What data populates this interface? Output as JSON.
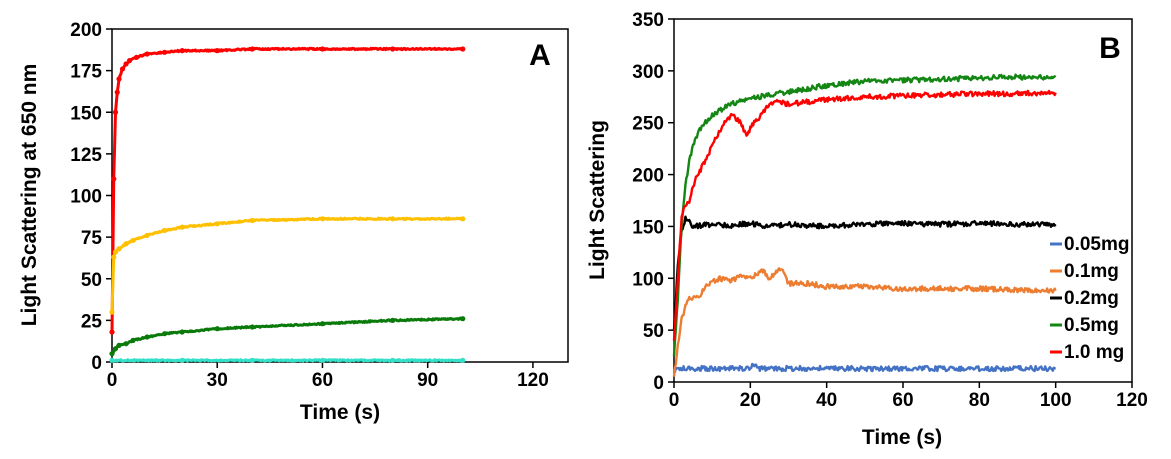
{
  "chart_data": [
    {
      "type": "line",
      "panel_label": "A",
      "title": "",
      "xlabel": "Time (s)",
      "ylabel": "Light Scattering at 650 nm",
      "xlim": [
        0,
        130
      ],
      "ylim": [
        0,
        200
      ],
      "xticks": [
        0,
        30,
        60,
        90,
        120
      ],
      "yticks": [
        0,
        25,
        50,
        75,
        100,
        125,
        150,
        175,
        200
      ],
      "grid": false,
      "legend": null,
      "series": [
        {
          "name": "red",
          "color": "#ff0000",
          "x": [
            0,
            0.5,
            1,
            1.5,
            2,
            3,
            4,
            5,
            7,
            10,
            15,
            20,
            30,
            40,
            60,
            80,
            100
          ],
          "y": [
            18,
            110,
            150,
            162,
            170,
            176,
            179,
            181,
            183,
            185,
            186,
            187,
            187,
            188,
            188,
            188,
            188
          ]
        },
        {
          "name": "yellow",
          "color": "#ffc000",
          "x": [
            0,
            0.5,
            1,
            2,
            4,
            6,
            10,
            15,
            20,
            30,
            40,
            60,
            80,
            100
          ],
          "y": [
            30,
            63,
            66,
            68,
            71,
            73,
            76,
            79,
            81,
            83,
            85,
            86,
            86,
            86
          ]
        },
        {
          "name": "green",
          "color": "#0a7a0a",
          "x": [
            0,
            1,
            2,
            4,
            6,
            10,
            15,
            20,
            30,
            40,
            60,
            80,
            100
          ],
          "y": [
            5,
            8,
            10,
            11,
            13,
            15,
            17,
            18,
            20,
            21,
            23,
            25,
            26
          ]
        },
        {
          "name": "cyan",
          "color": "#33e0c8",
          "x": [
            0,
            20,
            40,
            60,
            80,
            100
          ],
          "y": [
            1,
            1,
            1,
            1,
            1,
            1
          ]
        }
      ]
    },
    {
      "type": "line",
      "panel_label": "B",
      "title": "",
      "xlabel": "Time (s)",
      "ylabel": "Light Scattering",
      "xlim": [
        0,
        120
      ],
      "ylim": [
        0,
        350
      ],
      "xticks": [
        0,
        20,
        40,
        60,
        80,
        100,
        120
      ],
      "yticks": [
        0,
        50,
        100,
        150,
        200,
        250,
        300,
        350
      ],
      "grid": false,
      "legend": "right",
      "series": [
        {
          "name": "0.05mg",
          "color": "#4472c4",
          "x": [
            0,
            1,
            5,
            10,
            20,
            21,
            22,
            30,
            40,
            60,
            80,
            100
          ],
          "y": [
            10,
            13,
            13,
            13,
            13,
            17,
            13,
            13,
            13,
            13,
            13,
            13
          ]
        },
        {
          "name": "0.1mg",
          "color": "#ed7d31",
          "x": [
            0,
            1,
            2,
            3,
            4,
            5,
            7,
            9,
            12,
            15,
            18,
            20,
            23,
            25,
            28,
            30,
            35,
            40,
            50,
            60,
            80,
            100
          ],
          "y": [
            5,
            35,
            60,
            72,
            80,
            80,
            85,
            95,
            100,
            98,
            102,
            100,
            108,
            100,
            110,
            95,
            95,
            92,
            92,
            90,
            90,
            88
          ]
        },
        {
          "name": "0.2mg",
          "color": "#000000",
          "x": [
            0,
            1,
            2,
            3,
            4,
            5,
            10,
            15,
            20,
            25,
            30,
            40,
            50,
            60,
            70,
            80,
            90,
            100
          ],
          "y": [
            50,
            110,
            145,
            158,
            154,
            150,
            152,
            151,
            153,
            150,
            152,
            150,
            152,
            153,
            152,
            153,
            152,
            152
          ]
        },
        {
          "name": "0.5mg",
          "color": "#138613",
          "x": [
            0,
            1,
            2,
            3,
            4,
            5,
            7,
            10,
            15,
            20,
            25,
            30,
            40,
            50,
            60,
            70,
            80,
            90,
            100
          ],
          "y": [
            25,
            80,
            150,
            190,
            212,
            228,
            245,
            258,
            268,
            273,
            277,
            280,
            286,
            290,
            291,
            292,
            293,
            294,
            294
          ]
        },
        {
          "name": "1.0 mg",
          "color": "#ff0000",
          "x": [
            0,
            1,
            2,
            3,
            4,
            5,
            7,
            9,
            11,
            13,
            15,
            17,
            19,
            21,
            23,
            25,
            27,
            30,
            35,
            40,
            50,
            60,
            70,
            80,
            90,
            100
          ],
          "y": [
            40,
            100,
            160,
            170,
            175,
            190,
            205,
            220,
            235,
            248,
            258,
            252,
            238,
            250,
            258,
            268,
            270,
            268,
            270,
            272,
            275,
            276,
            277,
            278,
            278,
            279
          ]
        }
      ]
    }
  ]
}
